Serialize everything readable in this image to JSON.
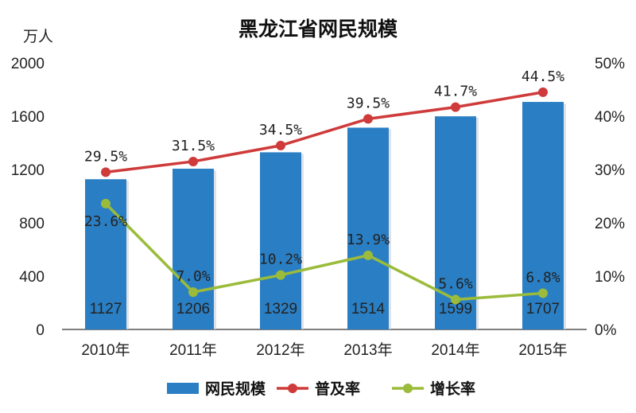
{
  "chart_data": {
    "type": "bar",
    "title": "黑龙江省网民规模",
    "y_unit_left": "万人",
    "categories": [
      "2010年",
      "2011年",
      "2012年",
      "2013年",
      "2014年",
      "2015年"
    ],
    "left_axis": {
      "ylim": [
        0,
        2000
      ],
      "ticks": [
        "0",
        "400",
        "800",
        "1200",
        "1600",
        "2000"
      ]
    },
    "right_axis": {
      "ylim": [
        0,
        50
      ],
      "ticks": [
        "0%",
        "10%",
        "20%",
        "30%",
        "40%",
        "50%"
      ]
    },
    "series": [
      {
        "name": "网民规模",
        "type": "bar",
        "axis": "left",
        "color": "#2a7fc4",
        "values": [
          1127,
          1206,
          1329,
          1514,
          1599,
          1707
        ],
        "labels": [
          "1127",
          "1206",
          "1329",
          "1514",
          "1599",
          "1707"
        ]
      },
      {
        "name": "普及率",
        "type": "line",
        "axis": "right",
        "color": "#cf3a3a",
        "values": [
          29.5,
          31.5,
          34.5,
          39.5,
          41.7,
          44.5
        ],
        "labels": [
          "29.5%",
          "31.5%",
          "34.5%",
          "39.5%",
          "41.7%",
          "44.5%"
        ]
      },
      {
        "name": "增长率",
        "type": "line",
        "axis": "right",
        "color": "#9bbb3b",
        "values": [
          23.6,
          7.0,
          10.2,
          13.9,
          5.6,
          6.8
        ],
        "labels": [
          "23.6%",
          "7.0%",
          "10.2%",
          "13.9%",
          "5.6%",
          "6.8%"
        ]
      }
    ],
    "grid": false,
    "legend": "bottom"
  }
}
